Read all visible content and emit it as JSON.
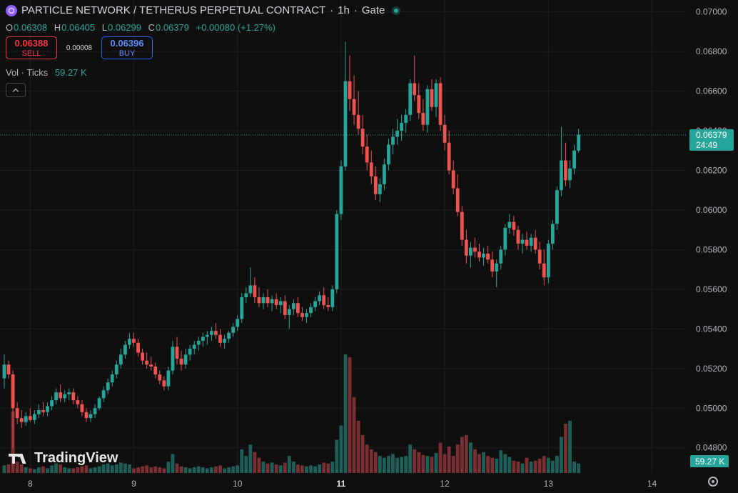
{
  "header": {
    "symbol": "PARTICLE NETWORK / TETHERUS PERPETUAL CONTRACT",
    "sep1": "·",
    "interval": "1h",
    "sep2": "·",
    "exchange": "Gate",
    "icon": "coin-logo-icon",
    "status_icon": "market-open-icon"
  },
  "ohlc": {
    "o_label": "O",
    "o": "0.06308",
    "h_label": "H",
    "h": "0.06405",
    "l_label": "L",
    "l": "0.06299",
    "c_label": "C",
    "c": "0.06379",
    "change": "+0.00080 (+1.27%)"
  },
  "trade": {
    "sell_price": "0.06388",
    "sell_label": "SELL",
    "spread": "0.00008",
    "buy_price": "0.06396",
    "buy_label": "BUY"
  },
  "volume_legend": {
    "name": "Vol · Ticks",
    "value": "59.27 K"
  },
  "branding": {
    "name": "TradingView",
    "icon": "tradingview-logo-icon"
  },
  "settings_icon": "gear-icon",
  "colors": {
    "up": "#26a69a",
    "down": "#ef5350",
    "vol_up": "#1f5f59",
    "vol_down": "#7a2f33",
    "background": "#0f0f0f",
    "grid": "#1e1e1e"
  },
  "chart_data": {
    "type": "candlestick",
    "interval": "1h",
    "y_axis": {
      "ticks": [
        "0.04800",
        "0.05000",
        "0.05200",
        "0.05400",
        "0.05600",
        "0.05800",
        "0.06000",
        "0.06200",
        "0.06400",
        "0.06600",
        "0.06800",
        "0.07000"
      ],
      "range": [
        0.0468,
        0.0706
      ]
    },
    "x_axis": {
      "ticks": [
        {
          "label": "8",
          "index": 6
        },
        {
          "label": "9",
          "index": 30
        },
        {
          "label": "10",
          "index": 54
        },
        {
          "label": "11",
          "index": 78
        },
        {
          "label": "12",
          "index": 102
        },
        {
          "label": "13",
          "index": 126
        },
        {
          "label": "14",
          "index": 150
        }
      ],
      "bold": [
        "11"
      ]
    },
    "last_price": {
      "value": "0.06379",
      "countdown": "24:49",
      "level": 0.06379
    },
    "last_volume": "59.27 K",
    "grid": true,
    "candles": [
      [
        0.0515,
        0.0527,
        0.051,
        0.0522
      ],
      [
        0.0522,
        0.0524,
        0.0515,
        0.0517
      ],
      [
        0.0517,
        0.0519,
        0.048,
        0.05
      ],
      [
        0.05,
        0.0503,
        0.0492,
        0.0495
      ],
      [
        0.0495,
        0.0499,
        0.049,
        0.0493
      ],
      [
        0.0493,
        0.0498,
        0.0491,
        0.0496
      ],
      [
        0.0496,
        0.05,
        0.0493,
        0.0494
      ],
      [
        0.0494,
        0.0499,
        0.0492,
        0.0497
      ],
      [
        0.0497,
        0.0502,
        0.0495,
        0.0499
      ],
      [
        0.0499,
        0.0503,
        0.0496,
        0.0498
      ],
      [
        0.0498,
        0.0503,
        0.0496,
        0.0501
      ],
      [
        0.0501,
        0.0506,
        0.0499,
        0.0504
      ],
      [
        0.0504,
        0.051,
        0.0502,
        0.0508
      ],
      [
        0.0508,
        0.0512,
        0.0503,
        0.0505
      ],
      [
        0.0505,
        0.0509,
        0.0503,
        0.0507
      ],
      [
        0.0507,
        0.051,
        0.0504,
        0.0508
      ],
      [
        0.0508,
        0.051,
        0.0502,
        0.0504
      ],
      [
        0.0504,
        0.0506,
        0.05,
        0.0502
      ],
      [
        0.0502,
        0.0504,
        0.0496,
        0.0498
      ],
      [
        0.0498,
        0.05,
        0.0493,
        0.0495
      ],
      [
        0.0495,
        0.0499,
        0.0493,
        0.0497
      ],
      [
        0.0497,
        0.0502,
        0.0495,
        0.05
      ],
      [
        0.05,
        0.0506,
        0.0499,
        0.0505
      ],
      [
        0.0505,
        0.0511,
        0.0503,
        0.0509
      ],
      [
        0.0509,
        0.0515,
        0.0507,
        0.0513
      ],
      [
        0.0513,
        0.0519,
        0.0511,
        0.0517
      ],
      [
        0.0517,
        0.0524,
        0.0515,
        0.0522
      ],
      [
        0.0522,
        0.053,
        0.052,
        0.0527
      ],
      [
        0.0527,
        0.0534,
        0.0525,
        0.0532
      ],
      [
        0.0532,
        0.0538,
        0.053,
        0.0535
      ],
      [
        0.0535,
        0.0538,
        0.0531,
        0.0533
      ],
      [
        0.0533,
        0.0535,
        0.0526,
        0.0528
      ],
      [
        0.0528,
        0.053,
        0.0522,
        0.0524
      ],
      [
        0.0524,
        0.0528,
        0.052,
        0.0522
      ],
      [
        0.0522,
        0.0526,
        0.0519,
        0.0521
      ],
      [
        0.0521,
        0.0523,
        0.0515,
        0.0517
      ],
      [
        0.0517,
        0.0519,
        0.0512,
        0.0514
      ],
      [
        0.0514,
        0.0516,
        0.0509,
        0.0511
      ],
      [
        0.0511,
        0.0521,
        0.0509,
        0.0519
      ],
      [
        0.0519,
        0.0534,
        0.0517,
        0.0531
      ],
      [
        0.0531,
        0.0536,
        0.0522,
        0.0525
      ],
      [
        0.0525,
        0.0529,
        0.0519,
        0.0522
      ],
      [
        0.0522,
        0.053,
        0.052,
        0.0527
      ],
      [
        0.0527,
        0.0532,
        0.0524,
        0.053
      ],
      [
        0.053,
        0.0534,
        0.0527,
        0.0532
      ],
      [
        0.0532,
        0.0536,
        0.0529,
        0.0534
      ],
      [
        0.0534,
        0.0538,
        0.0531,
        0.0536
      ],
      [
        0.0536,
        0.0539,
        0.0532,
        0.0537
      ],
      [
        0.0537,
        0.0541,
        0.0534,
        0.0539
      ],
      [
        0.0539,
        0.0543,
        0.0535,
        0.0537
      ],
      [
        0.0537,
        0.054,
        0.0531,
        0.0533
      ],
      [
        0.0533,
        0.0537,
        0.053,
        0.0535
      ],
      [
        0.0535,
        0.0539,
        0.0533,
        0.0538
      ],
      [
        0.0538,
        0.0543,
        0.0536,
        0.0541
      ],
      [
        0.0541,
        0.0547,
        0.0539,
        0.0545
      ],
      [
        0.0545,
        0.0558,
        0.0543,
        0.0556
      ],
      [
        0.0556,
        0.0561,
        0.0553,
        0.0558
      ],
      [
        0.0558,
        0.0571,
        0.0556,
        0.0562
      ],
      [
        0.0562,
        0.0566,
        0.0553,
        0.0556
      ],
      [
        0.0556,
        0.0561,
        0.0551,
        0.0553
      ],
      [
        0.0553,
        0.0558,
        0.055,
        0.0556
      ],
      [
        0.0556,
        0.056,
        0.0551,
        0.0553
      ],
      [
        0.0553,
        0.0557,
        0.0549,
        0.0555
      ],
      [
        0.0555,
        0.0558,
        0.055,
        0.0552
      ],
      [
        0.0552,
        0.0556,
        0.0548,
        0.0554
      ],
      [
        0.0554,
        0.0557,
        0.0545,
        0.0547
      ],
      [
        0.0547,
        0.0552,
        0.054,
        0.055
      ],
      [
        0.055,
        0.0555,
        0.0547,
        0.0553
      ],
      [
        0.0553,
        0.0556,
        0.0546,
        0.0548
      ],
      [
        0.0548,
        0.0551,
        0.0544,
        0.0546
      ],
      [
        0.0546,
        0.055,
        0.0543,
        0.0548
      ],
      [
        0.0548,
        0.0553,
        0.0546,
        0.0551
      ],
      [
        0.0551,
        0.0556,
        0.0549,
        0.0554
      ],
      [
        0.0554,
        0.0559,
        0.0552,
        0.0557
      ],
      [
        0.0557,
        0.0561,
        0.055,
        0.0552
      ],
      [
        0.0552,
        0.0556,
        0.0549,
        0.0551
      ],
      [
        0.0551,
        0.0562,
        0.0549,
        0.056
      ],
      [
        0.056,
        0.06,
        0.0558,
        0.0598
      ],
      [
        0.0598,
        0.0625,
        0.0595,
        0.0622
      ],
      [
        0.0622,
        0.0685,
        0.062,
        0.0665
      ],
      [
        0.0665,
        0.0678,
        0.065,
        0.0656
      ],
      [
        0.0656,
        0.0668,
        0.0643,
        0.0648
      ],
      [
        0.0648,
        0.066,
        0.0638,
        0.0641
      ],
      [
        0.0641,
        0.0648,
        0.0628,
        0.0632
      ],
      [
        0.0632,
        0.0638,
        0.062,
        0.0624
      ],
      [
        0.0624,
        0.063,
        0.0613,
        0.0617
      ],
      [
        0.0617,
        0.0622,
        0.0605,
        0.0608
      ],
      [
        0.0608,
        0.0616,
        0.0604,
        0.0613
      ],
      [
        0.0613,
        0.0626,
        0.061,
        0.0623
      ],
      [
        0.0623,
        0.0636,
        0.062,
        0.0633
      ],
      [
        0.0633,
        0.0641,
        0.0628,
        0.0637
      ],
      [
        0.0637,
        0.0646,
        0.0633,
        0.064
      ],
      [
        0.064,
        0.0648,
        0.0635,
        0.0644
      ],
      [
        0.0644,
        0.0651,
        0.0639,
        0.0648
      ],
      [
        0.0648,
        0.0666,
        0.0645,
        0.0664
      ],
      [
        0.0664,
        0.0678,
        0.0655,
        0.0658
      ],
      [
        0.0658,
        0.0664,
        0.0646,
        0.0649
      ],
      [
        0.0649,
        0.0656,
        0.064,
        0.0643
      ],
      [
        0.0643,
        0.0663,
        0.0639,
        0.0661
      ],
      [
        0.0661,
        0.0666,
        0.065,
        0.0652
      ],
      [
        0.0652,
        0.0666,
        0.0647,
        0.0664
      ],
      [
        0.0664,
        0.0667,
        0.064,
        0.0643
      ],
      [
        0.0643,
        0.0648,
        0.063,
        0.0634
      ],
      [
        0.0634,
        0.064,
        0.0618,
        0.062
      ],
      [
        0.062,
        0.0625,
        0.0608,
        0.0611
      ],
      [
        0.0611,
        0.0618,
        0.0597,
        0.0599
      ],
      [
        0.0599,
        0.0602,
        0.0582,
        0.0585
      ],
      [
        0.0585,
        0.059,
        0.0573,
        0.0577
      ],
      [
        0.0577,
        0.0584,
        0.0571,
        0.0581
      ],
      [
        0.0581,
        0.0586,
        0.0576,
        0.0579
      ],
      [
        0.0579,
        0.0583,
        0.0574,
        0.0576
      ],
      [
        0.0576,
        0.0581,
        0.0572,
        0.0578
      ],
      [
        0.0578,
        0.0582,
        0.0573,
        0.0575
      ],
      [
        0.0575,
        0.0579,
        0.0566,
        0.0569
      ],
      [
        0.0569,
        0.0575,
        0.0561,
        0.0573
      ],
      [
        0.0573,
        0.0582,
        0.057,
        0.058
      ],
      [
        0.058,
        0.0593,
        0.0577,
        0.0591
      ],
      [
        0.0591,
        0.0598,
        0.0588,
        0.0594
      ],
      [
        0.0594,
        0.0597,
        0.0587,
        0.059
      ],
      [
        0.059,
        0.0592,
        0.058,
        0.0583
      ],
      [
        0.0583,
        0.0588,
        0.0578,
        0.0585
      ],
      [
        0.0585,
        0.0589,
        0.058,
        0.0582
      ],
      [
        0.0582,
        0.0588,
        0.0579,
        0.0586
      ],
      [
        0.0586,
        0.059,
        0.0578,
        0.058
      ],
      [
        0.058,
        0.0584,
        0.057,
        0.0573
      ],
      [
        0.0573,
        0.058,
        0.0562,
        0.0566
      ],
      [
        0.0566,
        0.0585,
        0.0563,
        0.0583
      ],
      [
        0.0583,
        0.0595,
        0.058,
        0.0593
      ],
      [
        0.0593,
        0.0612,
        0.059,
        0.061
      ],
      [
        0.061,
        0.0642,
        0.0607,
        0.0625
      ],
      [
        0.0625,
        0.0634,
        0.0612,
        0.0615
      ],
      [
        0.0615,
        0.0625,
        0.0611,
        0.0621
      ],
      [
        0.0621,
        0.0633,
        0.0618,
        0.063
      ],
      [
        0.063,
        0.0641,
        0.0629,
        0.0638
      ]
    ],
    "volumes": [
      0.8,
      0.9,
      6.5,
      1.2,
      0.9,
      0.6,
      0.5,
      0.4,
      0.6,
      0.7,
      0.5,
      0.8,
      1.0,
      0.9,
      0.6,
      0.5,
      0.5,
      0.6,
      0.7,
      0.8,
      0.5,
      0.6,
      0.7,
      0.9,
      1.0,
      0.8,
      0.9,
      1.1,
      1.0,
      0.9,
      0.5,
      0.6,
      0.7,
      0.8,
      0.6,
      0.7,
      0.6,
      0.5,
      1.2,
      2.0,
      1.0,
      0.7,
      0.6,
      0.5,
      0.6,
      0.7,
      0.6,
      0.5,
      0.6,
      0.7,
      0.8,
      0.5,
      0.6,
      0.7,
      0.8,
      2.5,
      1.8,
      3.0,
      2.2,
      1.6,
      1.2,
      1.0,
      1.1,
      0.9,
      0.8,
      1.1,
      1.8,
      1.2,
      0.9,
      0.8,
      0.7,
      0.8,
      0.7,
      0.9,
      1.1,
      1.0,
      1.2,
      3.5,
      5.0,
      12.5,
      12.2,
      8.0,
      5.5,
      4.0,
      3.0,
      2.5,
      2.2,
      1.8,
      1.6,
      1.8,
      2.0,
      1.6,
      1.7,
      1.8,
      3.0,
      2.5,
      2.2,
      1.9,
      1.8,
      1.7,
      2.1,
      3.2,
      2.0,
      2.8,
      1.8,
      3.0,
      3.8,
      4.0,
      3.2,
      2.5,
      2.0,
      2.2,
      1.8,
      1.6,
      1.5,
      2.4,
      2.0,
      1.7,
      1.3,
      1.2,
      1.0,
      1.6,
      1.2,
      1.3,
      1.5,
      1.8,
      1.6,
      1.3,
      1.8,
      3.8,
      5.2,
      5.5,
      1.2,
      1.0
    ]
  }
}
